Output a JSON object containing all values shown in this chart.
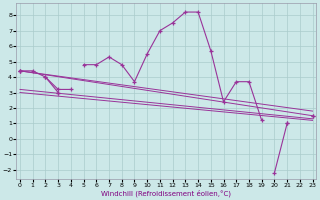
{
  "x": [
    0,
    1,
    2,
    3,
    4,
    5,
    6,
    7,
    8,
    9,
    10,
    11,
    12,
    13,
    14,
    15,
    16,
    17,
    18,
    19,
    20,
    21,
    22,
    23
  ],
  "main_line": [
    4.4,
    4.4,
    4.0,
    3.0,
    null,
    4.8,
    4.8,
    5.3,
    4.8,
    3.7,
    5.5,
    7.0,
    7.5,
    8.2,
    8.2,
    5.7,
    2.4,
    3.7,
    3.7,
    1.2,
    null,
    1.0,
    null,
    1.5
  ],
  "short_line": [
    4.4,
    null,
    4.0,
    3.2,
    3.2,
    null,
    null,
    null,
    null,
    null,
    null,
    null,
    null,
    null,
    null,
    null,
    null,
    null,
    null,
    null,
    null,
    null,
    null,
    null
  ],
  "bottom_line": [
    4.4,
    null,
    null,
    3.0,
    null,
    null,
    null,
    null,
    null,
    null,
    null,
    null,
    null,
    null,
    null,
    null,
    null,
    null,
    null,
    null,
    -2.2,
    1.0,
    null,
    1.5
  ],
  "trend_lines": [
    [
      [
        0,
        23
      ],
      [
        4.4,
        1.5
      ]
    ],
    [
      [
        0,
        23
      ],
      [
        4.4,
        1.8
      ]
    ],
    [
      [
        0,
        23
      ],
      [
        3.2,
        1.3
      ]
    ],
    [
      [
        0,
        23
      ],
      [
        3.0,
        1.2
      ]
    ]
  ],
  "xtick_labels": [
    "0",
    "1",
    "2",
    "3",
    "4",
    "5",
    "6",
    "7",
    "8",
    "9",
    "10",
    "11",
    "12",
    "13",
    "14",
    "15",
    "16",
    "17",
    "18",
    "19",
    "20",
    "21",
    "22",
    "23"
  ],
  "yticks": [
    -2,
    -1,
    0,
    1,
    2,
    3,
    4,
    5,
    6,
    7,
    8
  ],
  "ylim": [
    -2.6,
    8.8
  ],
  "xlim": [
    -0.3,
    23.3
  ],
  "xlabel": "Windchill (Refroidissement éolien,°C)",
  "color": "#993399",
  "bg_color": "#cce8e8",
  "grid_color": "#aacccc",
  "spine_color": "#9999aa"
}
